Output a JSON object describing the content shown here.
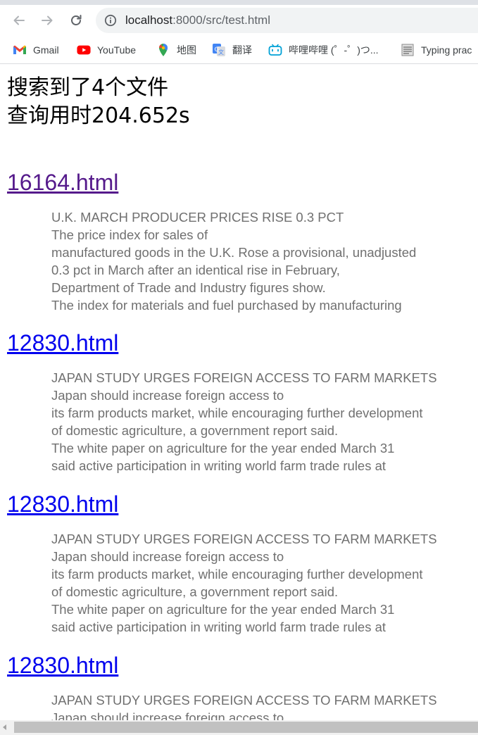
{
  "browser": {
    "url_host": "localhost",
    "url_rest": ":8000/src/test.html",
    "bookmarks": [
      {
        "label": "Gmail",
        "icon": "gmail-icon"
      },
      {
        "label": "YouTube",
        "icon": "youtube-icon"
      },
      {
        "label": "地图",
        "icon": "maps-icon"
      },
      {
        "label": "翻译",
        "icon": "translate-icon"
      },
      {
        "label": "哔哩哔哩 (゜-゜)つ...",
        "icon": "bilibili-icon"
      },
      {
        "label": "Typing prac",
        "icon": "typing-icon"
      }
    ]
  },
  "page": {
    "summary_line1": "搜索到了4个文件",
    "summary_line2": "查询用时204.652s",
    "link_color_visited": "#551a8b",
    "link_color": "#0000ee",
    "results": [
      {
        "link": "16164.html",
        "visited": true,
        "lines": [
          "U.K. MARCH PRODUCER PRICES RISE 0.3 PCT",
          "The price index for sales of",
          "manufactured goods in the U.K. Rose a provisional, unadjusted",
          "0.3 pct in March after an identical rise in February,",
          "Department of Trade and Industry figures show.",
          "The index for materials and fuel purchased by manufacturing"
        ]
      },
      {
        "link": "12830.html",
        "visited": false,
        "lines": [
          "JAPAN STUDY URGES FOREIGN ACCESS TO FARM MARKETS",
          "Japan should increase foreign access to",
          "its farm products market, while encouraging further development",
          "of domestic agriculture, a government report said.",
          "The white paper on agriculture for the year ended March 31",
          "said active participation in writing world farm trade rules at"
        ]
      },
      {
        "link": "12830.html",
        "visited": false,
        "lines": [
          "JAPAN STUDY URGES FOREIGN ACCESS TO FARM MARKETS",
          "Japan should increase foreign access to",
          "its farm products market, while encouraging further development",
          "of domestic agriculture, a government report said.",
          "The white paper on agriculture for the year ended March 31",
          "said active participation in writing world farm trade rules at"
        ]
      },
      {
        "link": "12830.html",
        "visited": false,
        "lines": [
          "JAPAN STUDY URGES FOREIGN ACCESS TO FARM MARKETS",
          "Japan should increase foreign access to"
        ]
      }
    ]
  }
}
